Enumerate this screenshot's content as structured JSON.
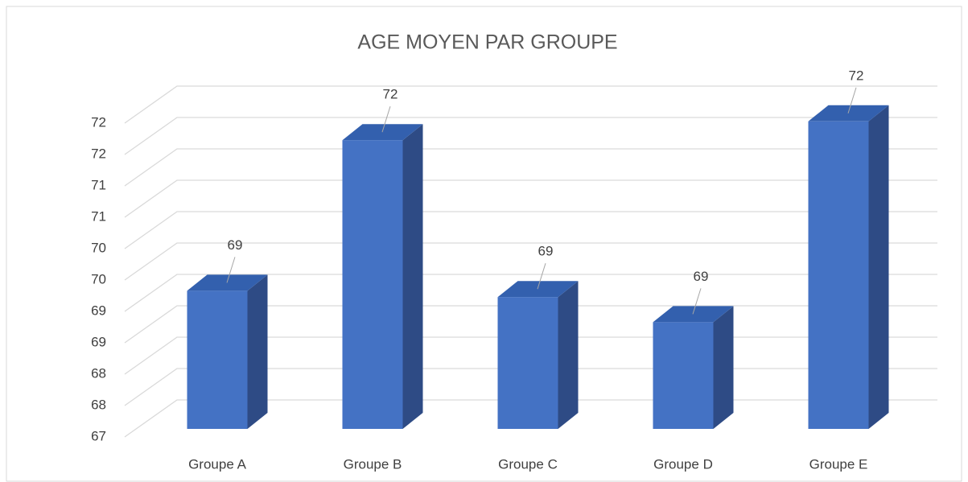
{
  "chart_data": {
    "type": "bar3d",
    "title": "AGE MOYEN PAR GROUPE",
    "categories": [
      "Groupe A",
      "Groupe B",
      "Groupe C",
      "Groupe D",
      "Groupe E"
    ],
    "values": [
      69.2,
      71.6,
      69.1,
      68.7,
      71.9
    ],
    "value_labels": [
      "69",
      "72",
      "69",
      "69",
      "72"
    ],
    "color": "#4472c4",
    "ylim": [
      67,
      72
    ],
    "yticks": [
      67,
      {
        "value": 67.5,
        "label": "68"
      },
      68,
      {
        "value": 68.5,
        "label": "69"
      },
      69,
      {
        "value": 69.5,
        "label": "70"
      },
      70,
      {
        "value": 70.5,
        "label": "71"
      },
      71,
      {
        "value": 71.5,
        "label": "72"
      },
      72
    ],
    "grid": true
  }
}
